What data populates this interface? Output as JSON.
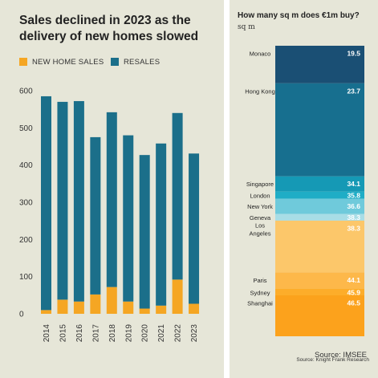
{
  "left_chart": {
    "title": "Sales declined in 2023 as the delivery of new homes slowed",
    "source": "Source: IMSEE",
    "legend": [
      {
        "label": "NEW HOME SALES",
        "color": "#f5a623"
      },
      {
        "label": "RESALES",
        "color": "#1b6f8a"
      }
    ]
  },
  "right_chart": {
    "title": "How many sq m does €1m buy?",
    "subtitle": "sq m",
    "source": "Source: Knight Frank Research"
  },
  "chart_data": [
    {
      "type": "bar",
      "stacked": true,
      "title": "Sales declined in 2023 as the delivery of new homes slowed",
      "categories": [
        "2014",
        "2015",
        "2016",
        "2017",
        "2018",
        "2019",
        "2020",
        "2021",
        "2022",
        "2023"
      ],
      "series": [
        {
          "name": "NEW HOME SALES",
          "color": "#f5a623",
          "values": [
            10,
            38,
            33,
            52,
            72,
            33,
            14,
            22,
            92,
            27
          ]
        },
        {
          "name": "RESALES",
          "color": "#1b6f8a",
          "values": [
            575,
            532,
            539,
            423,
            470,
            447,
            413,
            436,
            448,
            404
          ]
        }
      ],
      "ylim": [
        0,
        600
      ],
      "yticks": [
        "0",
        "100",
        "200",
        "300",
        "400",
        "500",
        "600"
      ],
      "xlabel": "",
      "ylabel": "",
      "grid": false,
      "legend_position": "top-left"
    },
    {
      "type": "bar",
      "orientation": "horizontal",
      "title": "How many sq m does €1m buy?",
      "subtitle": "sq m",
      "categories": [
        "Monaco",
        "Hong Kong",
        "Singapore",
        "London",
        "New York",
        "Geneva",
        "Los Angeles",
        "Paris",
        "Sydney",
        "Shanghai"
      ],
      "values": [
        19.5,
        23.7,
        34.1,
        35.8,
        36.6,
        38.3,
        38.3,
        44.1,
        45.9,
        46.5
      ],
      "value_labels": [
        "19.5",
        "23.7",
        "34.1",
        "35.8",
        "36.6",
        "38.3",
        "38.3",
        "44.1",
        "45.9",
        "46.5"
      ],
      "colors": [
        "#1a4f74",
        "#176f8f",
        "#1599b5",
        "#1fadc6",
        "#6fcadb",
        "#a8dde6",
        "#fcc76a",
        "#fdb84a",
        "#fdad2a",
        "#fca21c"
      ],
      "grid": false
    }
  ]
}
